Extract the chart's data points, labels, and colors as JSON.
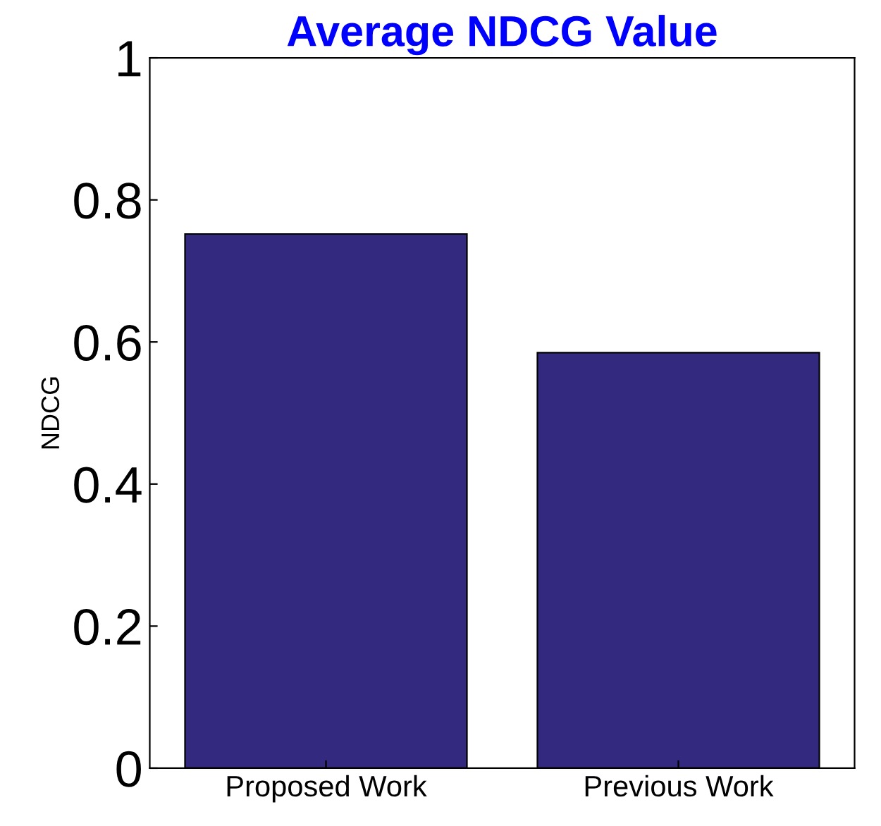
{
  "chart_data": {
    "type": "bar",
    "title": "Average NDCG Value",
    "ylabel": "NDCG",
    "categories": [
      "Proposed Work",
      "Previous Work"
    ],
    "values": [
      0.752,
      0.585
    ],
    "color": "#33297f",
    "ylim": [
      0,
      1
    ],
    "yticks": [
      0,
      0.2,
      0.4,
      0.6,
      0.8,
      1
    ],
    "grid": false
  }
}
